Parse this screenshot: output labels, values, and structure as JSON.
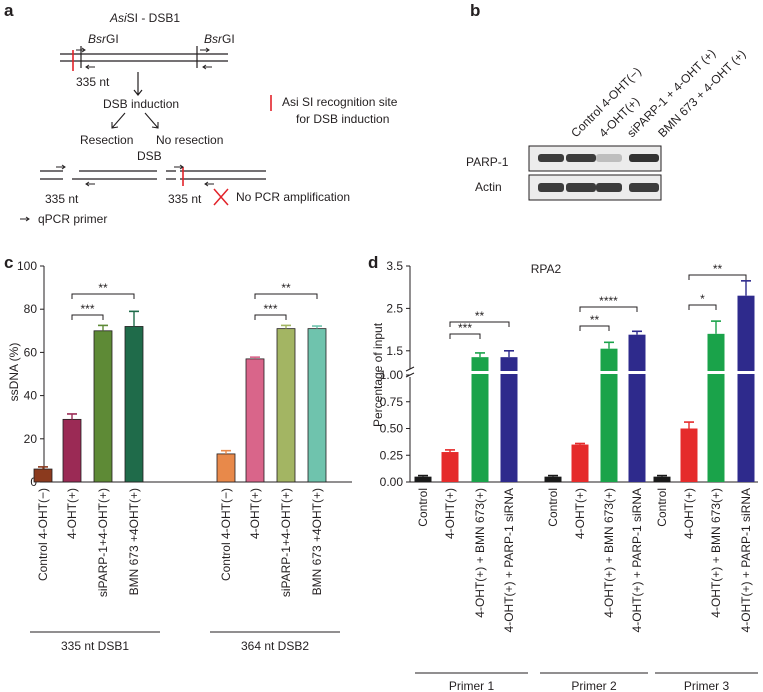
{
  "panels": {
    "a": "a",
    "b": "b",
    "c": "c",
    "d": "d"
  },
  "panel_a": {
    "title_italic": "Asi",
    "title_rest": "SI - DSB1",
    "bsrgi_italic": "Bsr",
    "bsrgi_rest": "GI",
    "fragment": "335 nt",
    "dsb_induction": "DSB induction",
    "resection": "Resection",
    "no_resection": "No resection",
    "dsb": "DSB",
    "fragment_left": "335 nt",
    "fragment_right": "335 nt",
    "no_pcr": "No PCR amplification",
    "qpcr_primer": "qPCR primer",
    "asisi_legend_line1": "Asi SI recognition site",
    "asisi_legend_line2": "for DSB induction",
    "colors": {
      "line": "#231f20",
      "cut": "#e2232a",
      "cross": "#e2232a"
    }
  },
  "panel_b": {
    "lanes": [
      "Control 4-OHT(−)",
      "4-OHT(+)",
      "siPARP-1 + 4-OHT (+)",
      "BMN 673 + 4-OHT (+)"
    ],
    "rows": [
      "PARP-1",
      "Actin"
    ],
    "parp1_intensity": [
      0.85,
      0.85,
      0.2,
      0.9
    ],
    "actin_intensity": [
      0.85,
      0.85,
      0.85,
      0.85
    ]
  },
  "chart_data": [
    {
      "type": "bar",
      "ylabel": "ssDNA (%)",
      "ylim": [
        0,
        100
      ],
      "yticks": [
        "0",
        "20",
        "40",
        "60",
        "80",
        "100"
      ],
      "categories": [
        "Control 4-OHT(−)",
        "4-OHT(+)",
        "siPARP-1+4-OHT(+)",
        "BMN 673 +4OHT(+)",
        "Control 4-OHT(−)",
        "4-OHT(+)",
        "siPARP-1+4-OHT(+)",
        "BMN 673 +4OHT(+)"
      ],
      "values": [
        6,
        29,
        70,
        72,
        13,
        57,
        71,
        71
      ],
      "errors": [
        1,
        2.5,
        2.5,
        7,
        1.5,
        0.8,
        1.5,
        1.2
      ],
      "colors": [
        "#8b3a1e",
        "#9b2a55",
        "#5e8a36",
        "#1f6b4a",
        "#e8894a",
        "#d9658a",
        "#a3b563",
        "#6fc3ad"
      ],
      "groups": [
        "335 nt DSB1",
        "364 nt DSB2"
      ],
      "significance": [
        "***",
        "**",
        "***",
        "**"
      ]
    },
    {
      "type": "bar",
      "title": "RPA2",
      "ylabel": "Percentage of input",
      "yticks_lower": [
        "0.00",
        "0.25",
        "0.50",
        "0.75",
        "1.00"
      ],
      "yticks_upper": [
        "1.5",
        "2.5",
        "3.5"
      ],
      "axis_break": "1.00",
      "categories": [
        "Control",
        "4-OHT(+)",
        "4-OHT(+) + BMN 673(+)",
        "4-OHT(+) + PARP-1 siRNA",
        "Control",
        "4-OHT(+)",
        "4-OHT(+) + BMN 673(+)",
        "4-OHT(+) + PARP-1 siRNA",
        "Control",
        "4-OHT(+)",
        "4-OHT(+) + BMN 673(+)",
        "4-OHT(+) + PARP-1 siRNA"
      ],
      "values": [
        0.05,
        0.28,
        1.35,
        1.35,
        0.05,
        0.35,
        1.55,
        1.88,
        0.05,
        0.5,
        1.9,
        2.8
      ],
      "errors": [
        0.01,
        0.02,
        0.1,
        0.15,
        0.01,
        0.01,
        0.15,
        0.08,
        0.01,
        0.06,
        0.3,
        0.35
      ],
      "colors": [
        "#1a1a1a",
        "#e52b2b",
        "#1aa34a",
        "#2e2a8c",
        "#1a1a1a",
        "#e52b2b",
        "#1aa34a",
        "#2e2a8c",
        "#1a1a1a",
        "#e52b2b",
        "#1aa34a",
        "#2e2a8c"
      ],
      "groups": [
        "Primer 1",
        "Primer 2",
        "Primer 3"
      ],
      "significance": [
        "***",
        "**",
        "**",
        "****",
        "*",
        "**"
      ]
    }
  ]
}
